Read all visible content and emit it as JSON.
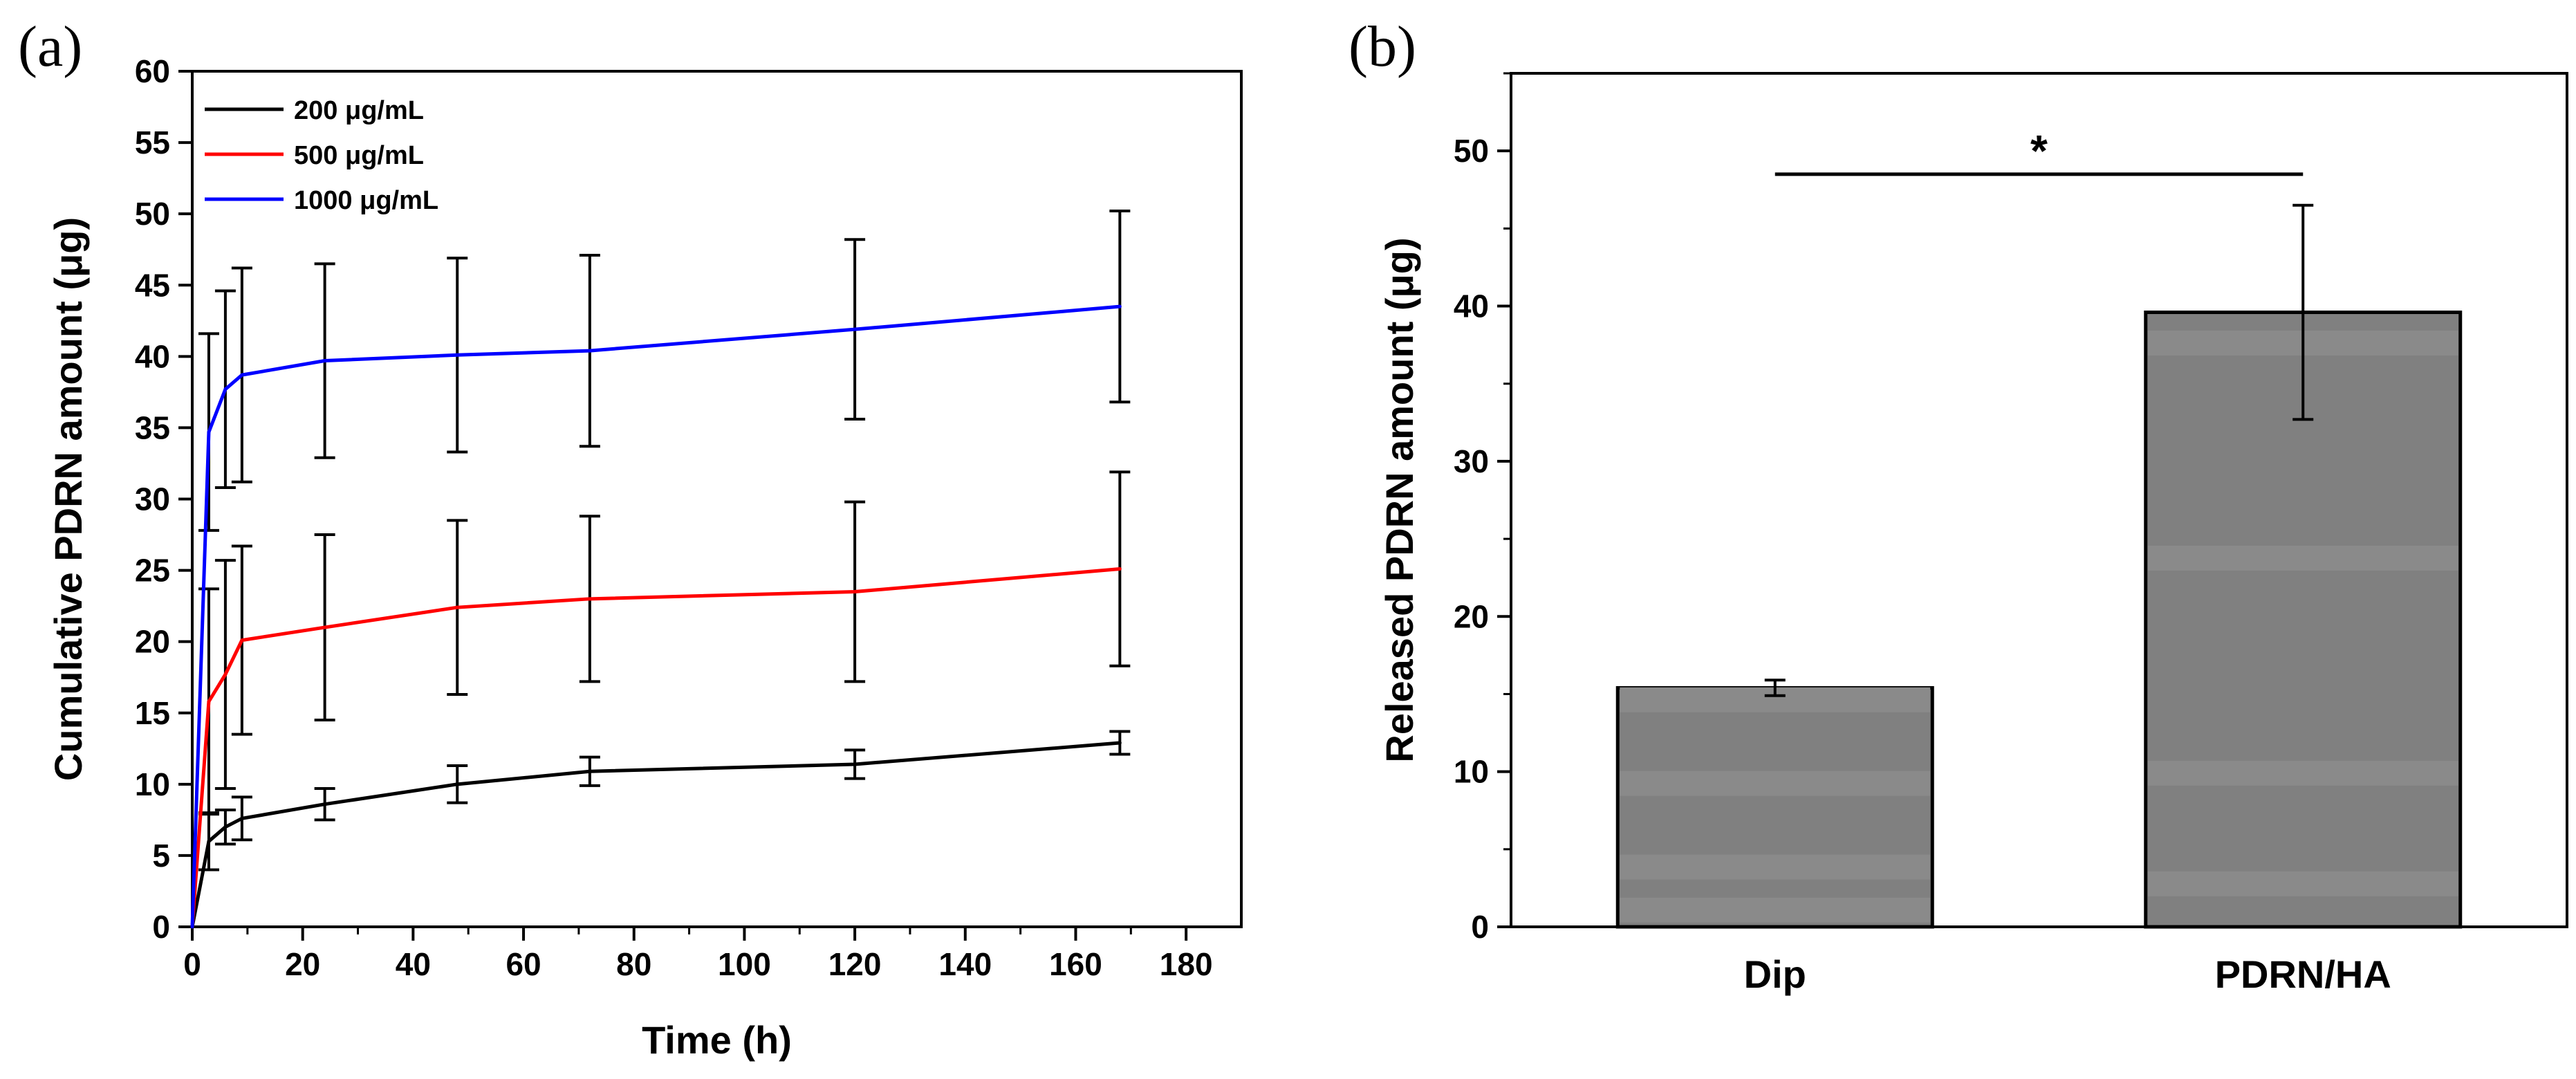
{
  "chart_data": [
    {
      "panel": "(a)",
      "type": "line",
      "xlabel": "Time (h)",
      "ylabel": "Cumulative PDRN amount (μg)",
      "xlim": [
        0,
        190
      ],
      "ylim": [
        0,
        60
      ],
      "xticks": [
        0,
        20,
        40,
        60,
        80,
        100,
        120,
        140,
        160,
        180
      ],
      "yticks": [
        0,
        5,
        10,
        15,
        20,
        25,
        30,
        35,
        40,
        45,
        50,
        55,
        60
      ],
      "legend_position": "top-left",
      "series": [
        {
          "name": "200 μg/mL",
          "color": "#000000",
          "x": [
            0,
            3,
            6,
            9,
            24,
            48,
            72,
            120,
            168
          ],
          "y": [
            0,
            6.0,
            7.0,
            7.6,
            8.6,
            10.0,
            10.9,
            11.4,
            12.9
          ],
          "err": [
            0,
            2.0,
            1.2,
            1.5,
            1.1,
            1.3,
            1.0,
            1.0,
            0.8
          ]
        },
        {
          "name": "500 μg/mL",
          "color": "#ff0000",
          "x": [
            0,
            3,
            6,
            9,
            24,
            48,
            72,
            120,
            168
          ],
          "y": [
            0,
            15.8,
            17.7,
            20.1,
            21.0,
            22.4,
            23.0,
            23.5,
            25.1
          ],
          "err": [
            0,
            7.9,
            8.0,
            6.6,
            6.5,
            6.1,
            5.8,
            6.3,
            6.8
          ]
        },
        {
          "name": "1000 μg/mL",
          "color": "#0000ff",
          "x": [
            0,
            3,
            6,
            9,
            24,
            48,
            72,
            120,
            168
          ],
          "y": [
            0,
            34.7,
            37.7,
            38.7,
            39.7,
            40.1,
            40.4,
            41.9,
            43.5
          ],
          "err": [
            0,
            6.9,
            6.9,
            7.5,
            6.8,
            6.8,
            6.7,
            6.3,
            6.7
          ]
        }
      ]
    },
    {
      "panel": "(b)",
      "type": "bar",
      "xlabel": "",
      "ylabel": "Released PDRN amount (μg)",
      "ylim": [
        0,
        55
      ],
      "yticks": [
        0,
        10,
        20,
        30,
        40,
        50
      ],
      "categories": [
        "Dip",
        "PDRN/HA"
      ],
      "values": [
        15.4,
        39.6
      ],
      "err": [
        0.5,
        6.9
      ],
      "bar_color": "#808080",
      "significance": {
        "label": "*",
        "between": [
          "Dip",
          "PDRN/HA"
        ],
        "y": 48.5
      }
    }
  ]
}
